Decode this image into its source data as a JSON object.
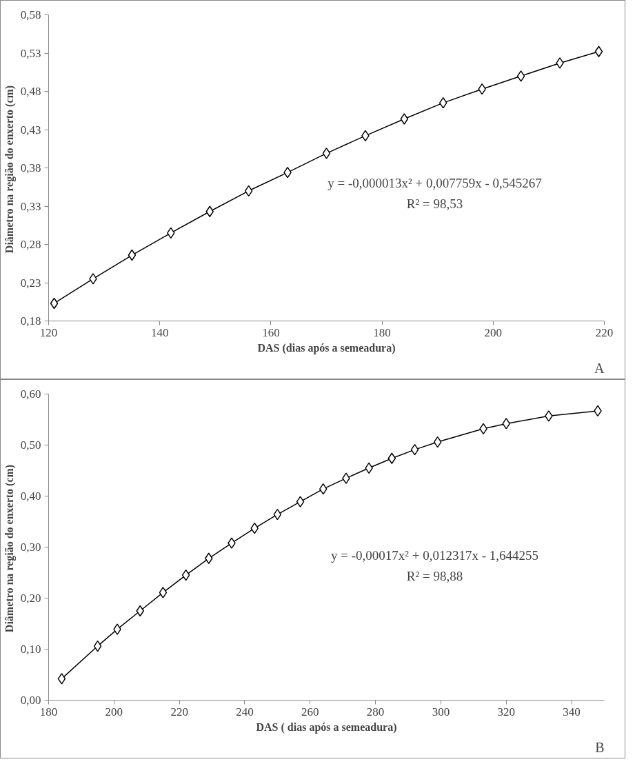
{
  "chart_data": [
    {
      "type": "line",
      "xlabel": "DAS (dias após a semeadura)",
      "ylabel": "Diâmetro na  região do enxerto (cm)",
      "marker": "diamond",
      "line_style": "solid",
      "grid": false,
      "x": [
        121,
        128,
        135,
        142,
        149,
        156,
        163,
        170,
        177,
        184,
        191,
        198,
        205,
        212,
        219
      ],
      "series": [
        {
          "color": "#000000",
          "values": [
            0.203,
            0.235,
            0.266,
            0.295,
            0.323,
            0.35,
            0.374,
            0.399,
            0.422,
            0.444,
            0.465,
            0.483,
            0.5,
            0.517,
            0.532
          ]
        }
      ],
      "xlim": [
        120,
        220
      ],
      "xticks": [
        120,
        140,
        160,
        180,
        200,
        220
      ],
      "ylim": [
        0.18,
        0.58
      ],
      "yticks": [
        {
          "value": 0.18,
          "label": "0,18"
        },
        {
          "value": 0.23,
          "label": "0,23"
        },
        {
          "value": 0.28,
          "label": "0,28"
        },
        {
          "value": 0.33,
          "label": "0,33"
        },
        {
          "value": 0.38,
          "label": "0,38"
        },
        {
          "value": 0.43,
          "label": "0,43"
        },
        {
          "value": 0.48,
          "label": "0,48"
        },
        {
          "value": 0.53,
          "label": "0,53"
        },
        {
          "value": 0.58,
          "label": "0,58"
        }
      ],
      "annotations": [
        "y = -0,000013x² + 0,007759x - 0,545267",
        "R² = 98,53",
        "A"
      ]
    },
    {
      "type": "line",
      "xlabel": "DAS ( dias após a semeadura)",
      "ylabel": "Diâmetro na  região do enxerto (cm)",
      "marker": "diamond",
      "line_style": "solid",
      "grid": false,
      "x": [
        184,
        195,
        201,
        208,
        215,
        222,
        229,
        236,
        243,
        250,
        257,
        264,
        271,
        278,
        285,
        292,
        299,
        313,
        320,
        333,
        348
      ],
      "series": [
        {
          "color": "#000000",
          "values": [
            0.042,
            0.106,
            0.139,
            0.175,
            0.211,
            0.245,
            0.278,
            0.308,
            0.337,
            0.364,
            0.389,
            0.414,
            0.435,
            0.455,
            0.474,
            0.491,
            0.506,
            0.532,
            0.542,
            0.557,
            0.567
          ]
        }
      ],
      "xlim": [
        180,
        350
      ],
      "xticks": [
        180,
        200,
        220,
        240,
        260,
        280,
        300,
        320,
        340
      ],
      "ylim": [
        0,
        0.6
      ],
      "yticks": [
        {
          "value": 0,
          "label": "0,00"
        },
        {
          "value": 0.1,
          "label": "0,10"
        },
        {
          "value": 0.2,
          "label": "0,20"
        },
        {
          "value": 0.3,
          "label": "0,30"
        },
        {
          "value": 0.4,
          "label": "0,40"
        },
        {
          "value": 0.5,
          "label": "0,50"
        },
        {
          "value": 0.6,
          "label": "0,60"
        }
      ],
      "annotations": [
        "y = -0,00017x² + 0,012317x - 1,644255",
        "R² = 98,88",
        "B"
      ]
    }
  ]
}
